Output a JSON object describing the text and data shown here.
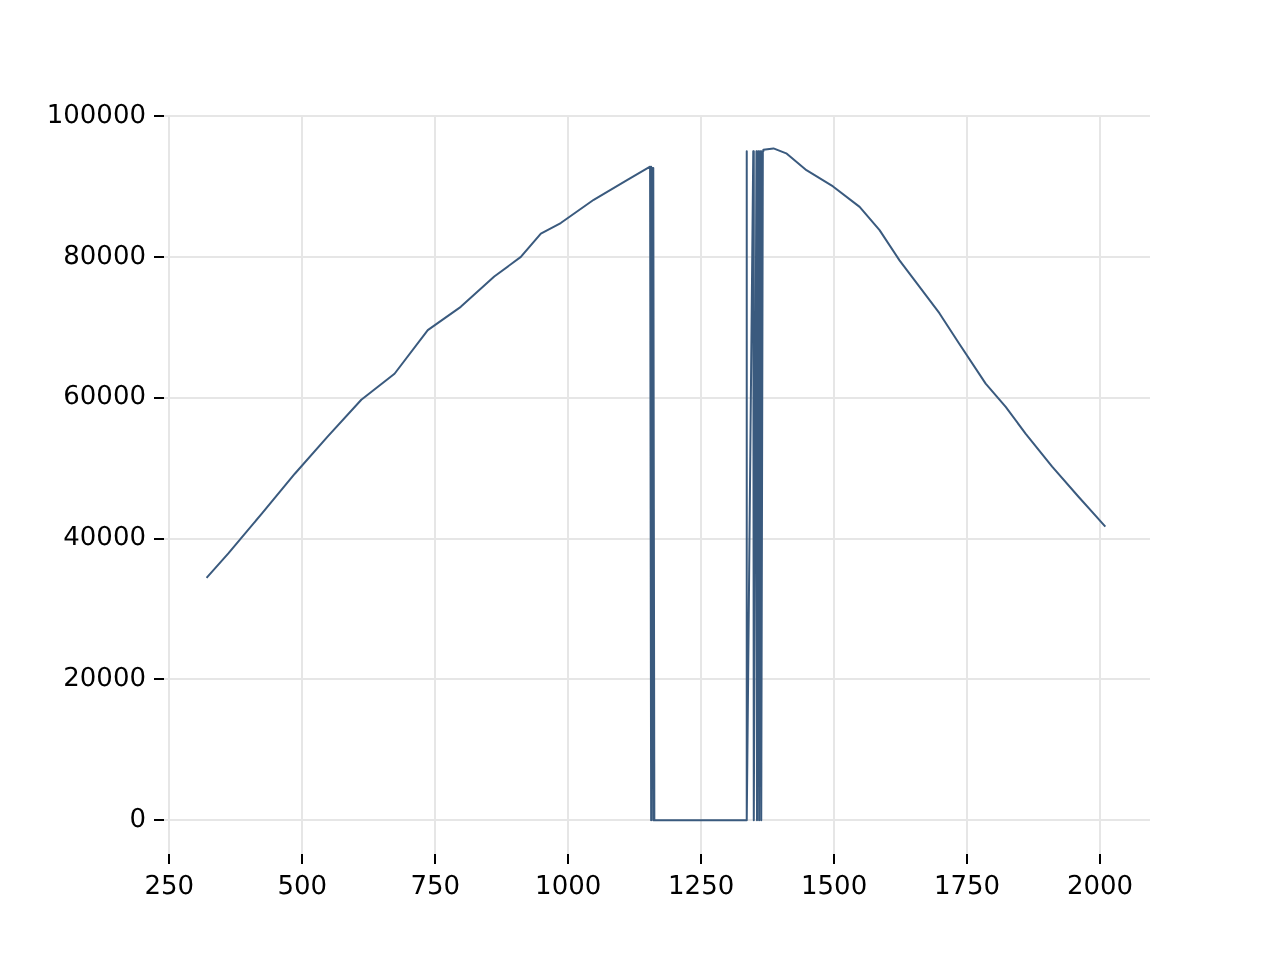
{
  "chart_data": {
    "type": "line",
    "x": [
      320,
      361,
      423.5,
      486,
      548,
      611,
      673.5,
      736,
      798,
      861,
      911,
      948.6,
      986,
      1048,
      1110.6,
      1154,
      1156,
      1158,
      1159,
      1161,
      1162,
      1335,
      1335.5,
      1336,
      1348,
      1349,
      1354,
      1355,
      1358,
      1359,
      1362,
      1363,
      1366,
      1367,
      1386,
      1410,
      1448,
      1498,
      1548,
      1585.5,
      1623,
      1660,
      1698,
      1735,
      1785,
      1822.7,
      1860,
      1910,
      1960,
      2010
    ],
    "series": [
      {
        "color": "#3a5a7e",
        "values": [
          34400,
          37900,
          43500,
          49200,
          54500,
          59700,
          63400,
          69600,
          72900,
          77200,
          80000,
          83300,
          84800,
          88100,
          90900,
          92800,
          0,
          92600,
          0,
          92600,
          0,
          0,
          95000,
          0,
          95000,
          0,
          95000,
          0,
          95000,
          0,
          95000,
          0,
          95000,
          95200,
          95400,
          94700,
          92300,
          90000,
          87100,
          83800,
          79500,
          75800,
          72000,
          67700,
          62000,
          58700,
          54900,
          50200,
          45900,
          41700
        ]
      }
    ],
    "xlim": [
      240,
      2094
    ],
    "xticks": [
      250,
      500,
      750,
      1000,
      1250,
      1500,
      1750,
      2000
    ],
    "ylim": [
      -4800,
      100000
    ],
    "yticks": [
      0,
      20000,
      40000,
      60000,
      80000,
      100000
    ],
    "grid": true,
    "legend": false,
    "marker": "none",
    "line_style": "solid"
  }
}
